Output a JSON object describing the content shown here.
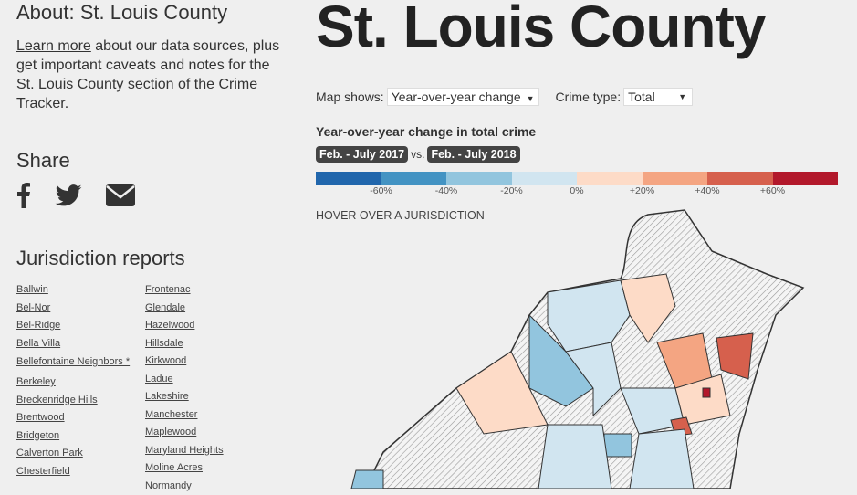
{
  "about": {
    "heading": "About: St. Louis County",
    "link": "Learn more",
    "text": " about our data sources, plus get important caveats and notes for the St. Louis County section of the Crime Tracker."
  },
  "share": {
    "heading": "Share",
    "icons": [
      "facebook-icon",
      "twitter-icon",
      "email-icon"
    ]
  },
  "jurisdictions": {
    "heading": "Jurisdiction reports",
    "col1": [
      "Ballwin",
      "Bel-Nor",
      "Bel-Ridge",
      "Bella Villa",
      "Bellefontaine Neighbors *",
      "Berkeley",
      "Breckenridge Hills",
      "Brentwood",
      "Bridgeton",
      "Calverton Park",
      "Chesterfield"
    ],
    "col2": [
      "Frontenac",
      "Glendale",
      "Hazelwood",
      "Hillsdale",
      "Kirkwood",
      "Ladue",
      "Lakeshire",
      "Manchester",
      "Maplewood",
      "Maryland Heights",
      "Moline Acres",
      "Normandy"
    ]
  },
  "page_title": "St. Louis County",
  "controls": {
    "map_label": "Map shows:",
    "map_value": "Year-over-year change",
    "crime_label": "Crime type:",
    "crime_value": "Total"
  },
  "legend": {
    "title": "Year-over-year change in total crime",
    "period1": "Feb. - July 2017",
    "vs": "vs.",
    "period2": "Feb. - July 2018",
    "colors": [
      "#2166ac",
      "#4393c3",
      "#92c5de",
      "#d1e5f0",
      "#fddbc7",
      "#f4a582",
      "#d6604d",
      "#b2182b"
    ],
    "ticks": [
      "-60%",
      "-40%",
      "-20%",
      "0%",
      "+20%",
      "+40%",
      "+60%"
    ]
  },
  "hover_text": "HOVER OVER A JURISDICTION"
}
